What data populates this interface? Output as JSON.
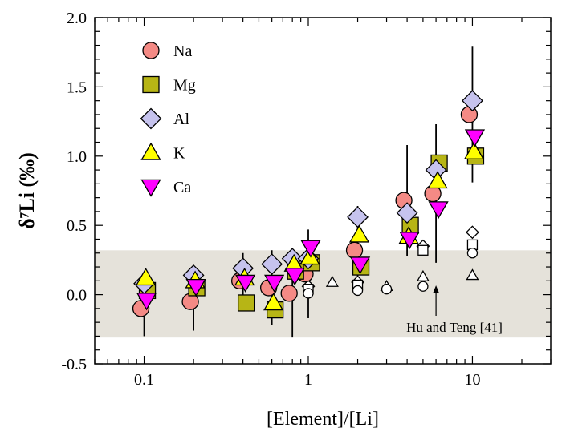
{
  "chart_data": {
    "type": "scatter",
    "x_scale": "log",
    "xlim": [
      0.05,
      30
    ],
    "ylim": [
      -0.5,
      2.0
    ],
    "xlabel": "[Element]/[Li]",
    "ylabel": "δ⁷Li (‰)",
    "x_ticks": [
      {
        "value": 0.1,
        "label": "0.1"
      },
      {
        "value": 1,
        "label": "1"
      },
      {
        "value": 10,
        "label": "10"
      }
    ],
    "y_ticks": [
      {
        "value": -0.5,
        "label": "-0.5"
      },
      {
        "value": 0.0,
        "label": "0.0"
      },
      {
        "value": 0.5,
        "label": "0.5"
      },
      {
        "value": 1.0,
        "label": "1.0"
      },
      {
        "value": 1.5,
        "label": "1.5"
      },
      {
        "value": 2.0,
        "label": "2.0"
      }
    ],
    "shaded_band": {
      "ymin": -0.31,
      "ymax": 0.32,
      "color": "#e5e2da"
    },
    "legend_position": "top-left",
    "series": [
      {
        "name": "Na",
        "marker": "circle",
        "color": "#f48a85",
        "points": [
          {
            "x": 0.1,
            "y": -0.1,
            "err": 0.2
          },
          {
            "x": 0.2,
            "y": -0.05,
            "err": 0.21
          },
          {
            "x": 0.4,
            "y": 0.1,
            "err": 0.2
          },
          {
            "x": 0.6,
            "y": 0.05,
            "err": 0.27
          },
          {
            "x": 0.8,
            "y": 0.01,
            "err": 0.32
          },
          {
            "x": 1.0,
            "y": 0.15,
            "err": 0.32
          },
          {
            "x": 2.0,
            "y": 0.32,
            "err": 0.32
          },
          {
            "x": 4.0,
            "y": 0.68,
            "err": 0.4
          },
          {
            "x": 6.0,
            "y": 0.73,
            "err": 0.5
          },
          {
            "x": 10.0,
            "y": 1.3,
            "err": 0.49
          }
        ]
      },
      {
        "name": "Mg",
        "marker": "square",
        "color": "#b7b515",
        "points": [
          {
            "x": 0.1,
            "y": 0.03
          },
          {
            "x": 0.2,
            "y": 0.05
          },
          {
            "x": 0.4,
            "y": -0.06
          },
          {
            "x": 0.6,
            "y": -0.11
          },
          {
            "x": 0.8,
            "y": 0.17
          },
          {
            "x": 1.0,
            "y": 0.23
          },
          {
            "x": 2.0,
            "y": 0.2
          },
          {
            "x": 4.0,
            "y": 0.5
          },
          {
            "x": 6.0,
            "y": 0.95
          },
          {
            "x": 10.0,
            "y": 1.0
          }
        ]
      },
      {
        "name": "Al",
        "marker": "diamond",
        "color": "#c6c3ee",
        "points": [
          {
            "x": 0.1,
            "y": 0.08
          },
          {
            "x": 0.2,
            "y": 0.14
          },
          {
            "x": 0.4,
            "y": 0.19
          },
          {
            "x": 0.6,
            "y": 0.22
          },
          {
            "x": 0.8,
            "y": 0.26
          },
          {
            "x": 1.0,
            "y": 0.26
          },
          {
            "x": 2.0,
            "y": 0.56
          },
          {
            "x": 4.0,
            "y": 0.59
          },
          {
            "x": 6.0,
            "y": 0.9
          },
          {
            "x": 10.0,
            "y": 1.4
          }
        ]
      },
      {
        "name": "K",
        "marker": "triangle-up",
        "color": "#ffff00",
        "points": [
          {
            "x": 0.1,
            "y": 0.12
          },
          {
            "x": 0.2,
            "y": 0.1
          },
          {
            "x": 0.4,
            "y": 0.12
          },
          {
            "x": 0.6,
            "y": -0.06
          },
          {
            "x": 0.8,
            "y": 0.22
          },
          {
            "x": 1.0,
            "y": 0.27
          },
          {
            "x": 2.0,
            "y": 0.43
          },
          {
            "x": 4.0,
            "y": 0.42
          },
          {
            "x": 6.0,
            "y": 0.82
          },
          {
            "x": 10.0,
            "y": 1.03
          }
        ]
      },
      {
        "name": "Ca",
        "marker": "triangle-down",
        "color": "#ff00ff",
        "points": [
          {
            "x": 0.1,
            "y": -0.04
          },
          {
            "x": 0.2,
            "y": 0.06
          },
          {
            "x": 0.4,
            "y": 0.09
          },
          {
            "x": 0.6,
            "y": 0.09
          },
          {
            "x": 0.8,
            "y": 0.14
          },
          {
            "x": 1.0,
            "y": 0.34
          },
          {
            "x": 2.0,
            "y": 0.22
          },
          {
            "x": 4.0,
            "y": 0.4
          },
          {
            "x": 6.0,
            "y": 0.62
          },
          {
            "x": 10.0,
            "y": 1.14
          }
        ]
      }
    ],
    "reference_points": {
      "label": "Hu and Teng [41]",
      "points": [
        {
          "x": 1.0,
          "y": 0.06,
          "marker": "diamond"
        },
        {
          "x": 1.0,
          "y": 0.04,
          "marker": "square"
        },
        {
          "x": 1.0,
          "y": 0.01,
          "marker": "circle"
        },
        {
          "x": 1.4,
          "y": 0.09,
          "marker": "triangle-up"
        },
        {
          "x": 2.0,
          "y": 0.09,
          "marker": "diamond"
        },
        {
          "x": 2.0,
          "y": 0.07,
          "marker": "square"
        },
        {
          "x": 2.0,
          "y": 0.03,
          "marker": "circle"
        },
        {
          "x": 3.0,
          "y": 0.06,
          "marker": "triangle-up"
        },
        {
          "x": 3.0,
          "y": 0.04,
          "marker": "circle"
        },
        {
          "x": 5.0,
          "y": 0.35,
          "marker": "diamond"
        },
        {
          "x": 5.0,
          "y": 0.32,
          "marker": "square"
        },
        {
          "x": 5.0,
          "y": 0.13,
          "marker": "triangle-up"
        },
        {
          "x": 5.0,
          "y": 0.06,
          "marker": "circle"
        },
        {
          "x": 10.0,
          "y": 0.45,
          "marker": "diamond"
        },
        {
          "x": 10.0,
          "y": 0.36,
          "marker": "square"
        },
        {
          "x": 10.0,
          "y": 0.3,
          "marker": "circle"
        },
        {
          "x": 10.0,
          "y": 0.14,
          "marker": "triangle-up"
        }
      ]
    }
  }
}
